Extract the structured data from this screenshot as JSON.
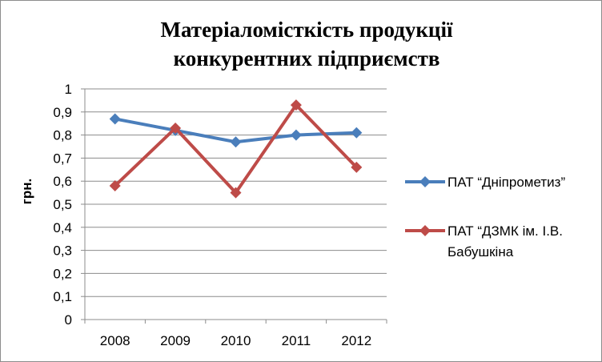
{
  "chart_data": {
    "type": "line",
    "title_lines": [
      "Матеріаломісткість  продукції",
      "конкурентних підприємств"
    ],
    "ylabel": "грн.",
    "xlabel": "",
    "categories": [
      "2008",
      "2009",
      "2010",
      "2011",
      "2012"
    ],
    "ylim": [
      0,
      1
    ],
    "ytick_step": 0.1,
    "ytick_labels": [
      "0",
      "0,1",
      "0,2",
      "0,3",
      "0,4",
      "0,5",
      "0,6",
      "0,7",
      "0,8",
      "0,9",
      "1"
    ],
    "grid": true,
    "legend_position": "right",
    "series": [
      {
        "name": "ПАТ “Дніпрометиз”",
        "name_lines": [
          "ПАТ “Дніпрометиз”"
        ],
        "color": "#4a7ebb",
        "marker": "diamond",
        "values": [
          0.87,
          0.82,
          0.77,
          0.8,
          0.81
        ]
      },
      {
        "name": "ПАТ “ДЗМК ім. І.В. Бабушкіна",
        "name_lines": [
          "ПАТ “ДЗМК ім. І.В.",
          "Бабушкіна"
        ],
        "color": "#be4b48",
        "marker": "diamond",
        "values": [
          0.58,
          0.83,
          0.55,
          0.93,
          0.66
        ]
      }
    ]
  }
}
